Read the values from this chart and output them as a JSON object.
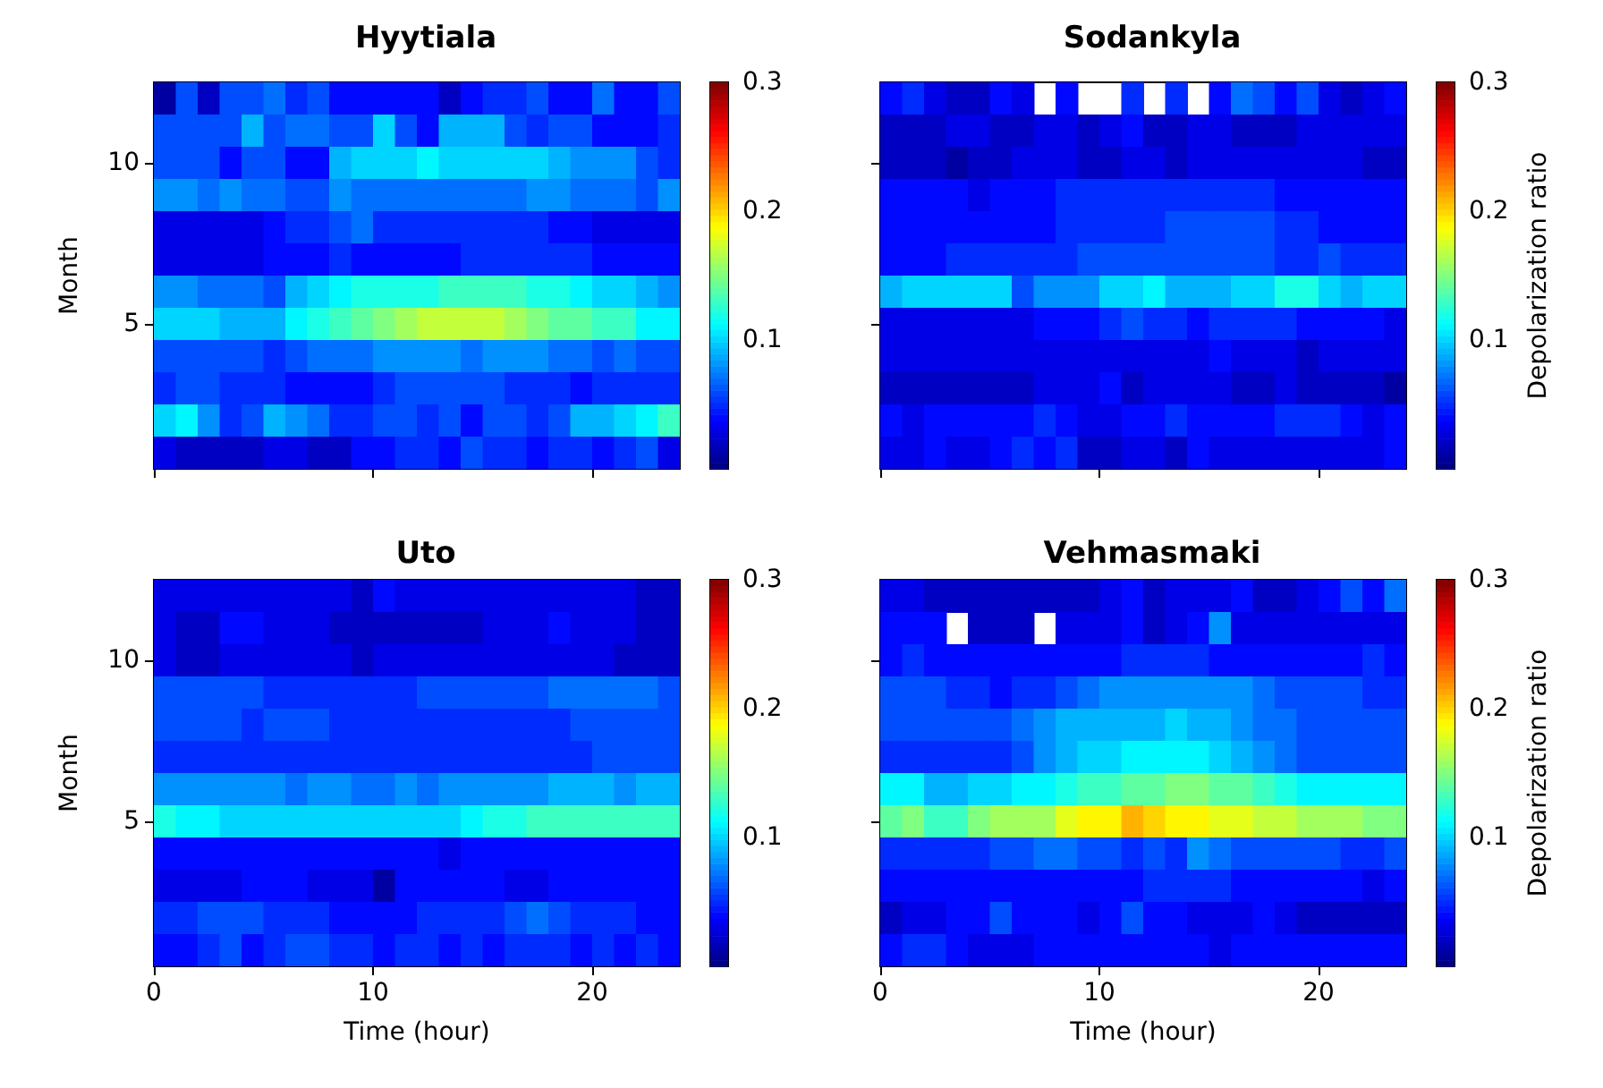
{
  "chart_data": [
    {
      "type": "heatmap",
      "title": "Hyytiala",
      "ylabel": "Month",
      "tick_labels": "y",
      "clim": [
        0,
        0.3
      ],
      "cticks": [
        0.1,
        0.2,
        0.3
      ],
      "xlim": [
        0,
        24
      ],
      "xticks": [
        0,
        10,
        20
      ],
      "x": [
        0.5,
        1.5,
        2.5,
        3.5,
        4.5,
        5.5,
        6.5,
        7.5,
        8.5,
        9.5,
        10.5,
        11.5,
        12.5,
        13.5,
        14.5,
        15.5,
        16.5,
        17.5,
        18.5,
        19.5,
        20.5,
        21.5,
        22.5,
        23.5
      ],
      "y_categories": [
        null,
        null,
        "10",
        null,
        null,
        null,
        null,
        "5",
        null,
        null,
        null,
        null
      ],
      "cells": [
        [
          0.01,
          0.06,
          0.02,
          0.06,
          0.06,
          0.07,
          0.05,
          0.06,
          0.04,
          0.04,
          0.04,
          0.04,
          0.04,
          0.02,
          0.04,
          0.05,
          0.05,
          0.06,
          0.04,
          0.04,
          0.07,
          0.04,
          0.04,
          0.06
        ],
        [
          0.06,
          0.06,
          0.06,
          0.06,
          0.09,
          0.06,
          0.07,
          0.07,
          0.06,
          0.06,
          0.1,
          0.06,
          0.04,
          0.09,
          0.09,
          0.09,
          0.06,
          0.05,
          0.06,
          0.06,
          0.04,
          0.04,
          0.04,
          0.05
        ],
        [
          0.06,
          0.06,
          0.06,
          0.04,
          0.06,
          0.06,
          0.04,
          0.04,
          0.09,
          0.1,
          0.1,
          0.1,
          0.11,
          0.1,
          0.1,
          0.1,
          0.1,
          0.1,
          0.09,
          0.08,
          0.08,
          0.08,
          0.06,
          0.05
        ],
        [
          0.08,
          0.08,
          0.07,
          0.08,
          0.07,
          0.07,
          0.06,
          0.06,
          0.08,
          0.07,
          0.07,
          0.07,
          0.07,
          0.07,
          0.07,
          0.07,
          0.07,
          0.08,
          0.08,
          0.07,
          0.07,
          0.07,
          0.06,
          0.08
        ],
        [
          0.03,
          0.03,
          0.03,
          0.03,
          0.03,
          0.04,
          0.05,
          0.05,
          0.06,
          0.07,
          0.05,
          0.05,
          0.05,
          0.05,
          0.05,
          0.05,
          0.05,
          0.05,
          0.04,
          0.04,
          0.03,
          0.03,
          0.03,
          0.03
        ],
        [
          0.03,
          0.03,
          0.03,
          0.03,
          0.03,
          0.04,
          0.04,
          0.04,
          0.05,
          0.04,
          0.04,
          0.04,
          0.04,
          0.04,
          0.05,
          0.05,
          0.05,
          0.05,
          0.05,
          0.05,
          0.04,
          0.04,
          0.04,
          0.04
        ],
        [
          0.08,
          0.08,
          0.07,
          0.07,
          0.07,
          0.06,
          0.09,
          0.1,
          0.11,
          0.12,
          0.12,
          0.12,
          0.12,
          0.13,
          0.13,
          0.13,
          0.13,
          0.12,
          0.12,
          0.11,
          0.1,
          0.1,
          0.09,
          0.08
        ],
        [
          0.1,
          0.1,
          0.1,
          0.09,
          0.09,
          0.09,
          0.11,
          0.12,
          0.13,
          0.14,
          0.15,
          0.16,
          0.17,
          0.17,
          0.17,
          0.17,
          0.16,
          0.15,
          0.14,
          0.14,
          0.13,
          0.13,
          0.11,
          0.11
        ],
        [
          0.06,
          0.06,
          0.06,
          0.06,
          0.06,
          0.05,
          0.06,
          0.07,
          0.07,
          0.07,
          0.08,
          0.08,
          0.08,
          0.08,
          0.07,
          0.08,
          0.08,
          0.08,
          0.07,
          0.07,
          0.06,
          0.07,
          0.06,
          0.06
        ],
        [
          0.05,
          0.06,
          0.06,
          0.05,
          0.05,
          0.05,
          0.04,
          0.04,
          0.04,
          0.04,
          0.05,
          0.06,
          0.06,
          0.06,
          0.06,
          0.06,
          0.05,
          0.05,
          0.05,
          0.04,
          0.05,
          0.05,
          0.05,
          0.05
        ],
        [
          0.1,
          0.11,
          0.08,
          0.05,
          0.06,
          0.09,
          0.08,
          0.07,
          0.05,
          0.05,
          0.06,
          0.06,
          0.05,
          0.06,
          0.04,
          0.06,
          0.06,
          0.05,
          0.06,
          0.09,
          0.09,
          0.1,
          0.11,
          0.13
        ],
        [
          0.03,
          0.02,
          0.02,
          0.02,
          0.02,
          0.03,
          0.03,
          0.02,
          0.02,
          0.04,
          0.04,
          0.05,
          0.05,
          0.04,
          0.06,
          0.05,
          0.05,
          0.04,
          0.05,
          0.05,
          0.04,
          0.05,
          0.06,
          0.03
        ]
      ]
    },
    {
      "type": "heatmap",
      "title": "Sodankyla",
      "clabel": "Depolarization ratio",
      "tick_labels": false,
      "clim": [
        0,
        0.3
      ],
      "cticks": [
        0.1,
        0.2,
        0.3
      ],
      "xlim": [
        0,
        24
      ],
      "xticks": [
        0,
        10,
        20
      ],
      "x": [
        0.5,
        1.5,
        2.5,
        3.5,
        4.5,
        5.5,
        6.5,
        7.5,
        8.5,
        9.5,
        10.5,
        11.5,
        12.5,
        13.5,
        14.5,
        15.5,
        16.5,
        17.5,
        18.5,
        19.5,
        20.5,
        21.5,
        22.5,
        23.5
      ],
      "y_categories": [
        null,
        null,
        "10",
        null,
        null,
        null,
        null,
        "5",
        null,
        null,
        null,
        null
      ],
      "cells": [
        [
          0.04,
          0.05,
          0.03,
          0.02,
          0.02,
          0.04,
          0.03,
          null,
          0.04,
          null,
          null,
          0.05,
          null,
          0.05,
          null,
          0.04,
          0.07,
          0.06,
          0.04,
          0.06,
          0.03,
          0.02,
          0.03,
          0.04
        ],
        [
          0.02,
          0.02,
          0.02,
          0.03,
          0.03,
          0.02,
          0.02,
          0.03,
          0.03,
          0.02,
          0.03,
          0.04,
          0.02,
          0.02,
          0.03,
          0.03,
          0.02,
          0.02,
          0.02,
          0.03,
          0.03,
          0.03,
          0.03,
          0.03
        ],
        [
          0.02,
          0.02,
          0.02,
          0.01,
          0.02,
          0.02,
          0.03,
          0.03,
          0.03,
          0.02,
          0.02,
          0.03,
          0.03,
          0.02,
          0.03,
          0.03,
          0.03,
          0.03,
          0.03,
          0.03,
          0.03,
          0.03,
          0.02,
          0.02
        ],
        [
          0.04,
          0.04,
          0.04,
          0.04,
          0.03,
          0.04,
          0.04,
          0.04,
          0.05,
          0.05,
          0.05,
          0.05,
          0.05,
          0.05,
          0.05,
          0.05,
          0.05,
          0.05,
          0.04,
          0.04,
          0.04,
          0.04,
          0.04,
          0.04
        ],
        [
          0.04,
          0.04,
          0.04,
          0.04,
          0.04,
          0.04,
          0.04,
          0.04,
          0.05,
          0.05,
          0.05,
          0.05,
          0.05,
          0.06,
          0.06,
          0.06,
          0.06,
          0.06,
          0.05,
          0.05,
          0.04,
          0.04,
          0.04,
          0.04
        ],
        [
          0.04,
          0.04,
          0.04,
          0.05,
          0.05,
          0.05,
          0.05,
          0.05,
          0.05,
          0.06,
          0.06,
          0.06,
          0.06,
          0.06,
          0.06,
          0.06,
          0.06,
          0.06,
          0.05,
          0.05,
          0.06,
          0.05,
          0.05,
          0.05
        ],
        [
          0.09,
          0.1,
          0.1,
          0.1,
          0.1,
          0.1,
          0.06,
          0.08,
          0.08,
          0.08,
          0.1,
          0.1,
          0.11,
          0.09,
          0.09,
          0.09,
          0.1,
          0.1,
          0.12,
          0.12,
          0.1,
          0.09,
          0.1,
          0.1
        ],
        [
          0.03,
          0.03,
          0.03,
          0.03,
          0.03,
          0.03,
          0.03,
          0.04,
          0.04,
          0.04,
          0.05,
          0.06,
          0.05,
          0.05,
          0.04,
          0.05,
          0.05,
          0.05,
          0.05,
          0.04,
          0.04,
          0.04,
          0.04,
          0.03
        ],
        [
          0.03,
          0.03,
          0.03,
          0.03,
          0.03,
          0.03,
          0.03,
          0.03,
          0.03,
          0.03,
          0.03,
          0.03,
          0.03,
          0.03,
          0.03,
          0.04,
          0.03,
          0.03,
          0.03,
          0.02,
          0.03,
          0.03,
          0.03,
          0.03
        ],
        [
          0.02,
          0.02,
          0.02,
          0.02,
          0.02,
          0.02,
          0.02,
          0.03,
          0.03,
          0.03,
          0.04,
          0.02,
          0.03,
          0.03,
          0.03,
          0.03,
          0.02,
          0.02,
          0.03,
          0.02,
          0.02,
          0.02,
          0.02,
          0.01
        ],
        [
          0.04,
          0.03,
          0.04,
          0.04,
          0.04,
          0.04,
          0.04,
          0.05,
          0.04,
          0.03,
          0.03,
          0.04,
          0.04,
          0.05,
          0.04,
          0.04,
          0.04,
          0.04,
          0.05,
          0.05,
          0.05,
          0.04,
          0.03,
          0.04
        ],
        [
          0.03,
          0.03,
          0.04,
          0.03,
          0.03,
          0.04,
          0.05,
          0.04,
          0.05,
          0.02,
          0.02,
          0.03,
          0.03,
          0.02,
          0.04,
          0.03,
          0.03,
          0.03,
          0.03,
          0.03,
          0.03,
          0.03,
          0.03,
          0.04
        ]
      ]
    },
    {
      "type": "heatmap",
      "title": "Uto",
      "xlabel": "Time (hour)",
      "ylabel": "Month",
      "clim": [
        0,
        0.3
      ],
      "cticks": [
        0.1,
        0.2,
        0.3
      ],
      "xlim": [
        0,
        24
      ],
      "xticks": [
        0,
        10,
        20
      ],
      "x": [
        0.5,
        1.5,
        2.5,
        3.5,
        4.5,
        5.5,
        6.5,
        7.5,
        8.5,
        9.5,
        10.5,
        11.5,
        12.5,
        13.5,
        14.5,
        15.5,
        16.5,
        17.5,
        18.5,
        19.5,
        20.5,
        21.5,
        22.5,
        23.5
      ],
      "y_categories": [
        null,
        null,
        "10",
        null,
        null,
        null,
        null,
        "5",
        null,
        null,
        null,
        null
      ],
      "cells": [
        [
          0.03,
          0.03,
          0.03,
          0.03,
          0.03,
          0.03,
          0.03,
          0.03,
          0.03,
          0.02,
          0.04,
          0.03,
          0.03,
          0.03,
          0.03,
          0.03,
          0.03,
          0.03,
          0.03,
          0.03,
          0.03,
          0.03,
          0.02,
          0.02
        ],
        [
          0.03,
          0.02,
          0.02,
          0.04,
          0.04,
          0.03,
          0.03,
          0.03,
          0.02,
          0.02,
          0.02,
          0.02,
          0.02,
          0.02,
          0.02,
          0.03,
          0.03,
          0.03,
          0.04,
          0.03,
          0.03,
          0.03,
          0.02,
          0.02
        ],
        [
          0.03,
          0.02,
          0.02,
          0.03,
          0.03,
          0.03,
          0.03,
          0.03,
          0.03,
          0.02,
          0.03,
          0.03,
          0.03,
          0.03,
          0.03,
          0.03,
          0.03,
          0.03,
          0.03,
          0.03,
          0.03,
          0.02,
          0.02,
          0.02
        ],
        [
          0.06,
          0.06,
          0.06,
          0.06,
          0.06,
          0.05,
          0.05,
          0.05,
          0.05,
          0.05,
          0.05,
          0.05,
          0.06,
          0.06,
          0.06,
          0.06,
          0.06,
          0.06,
          0.07,
          0.07,
          0.07,
          0.07,
          0.07,
          0.06
        ],
        [
          0.06,
          0.06,
          0.06,
          0.06,
          0.05,
          0.06,
          0.06,
          0.06,
          0.05,
          0.05,
          0.05,
          0.05,
          0.05,
          0.05,
          0.05,
          0.05,
          0.05,
          0.05,
          0.05,
          0.06,
          0.06,
          0.06,
          0.06,
          0.06
        ],
        [
          0.05,
          0.05,
          0.05,
          0.05,
          0.05,
          0.05,
          0.05,
          0.05,
          0.05,
          0.05,
          0.05,
          0.05,
          0.05,
          0.05,
          0.05,
          0.05,
          0.05,
          0.05,
          0.05,
          0.05,
          0.06,
          0.06,
          0.06,
          0.06
        ],
        [
          0.08,
          0.08,
          0.08,
          0.08,
          0.08,
          0.08,
          0.07,
          0.08,
          0.08,
          0.07,
          0.07,
          0.08,
          0.07,
          0.08,
          0.08,
          0.08,
          0.08,
          0.08,
          0.09,
          0.09,
          0.09,
          0.08,
          0.09,
          0.09
        ],
        [
          0.12,
          0.11,
          0.11,
          0.1,
          0.1,
          0.1,
          0.1,
          0.1,
          0.1,
          0.1,
          0.1,
          0.1,
          0.1,
          0.1,
          0.11,
          0.12,
          0.12,
          0.13,
          0.13,
          0.13,
          0.13,
          0.13,
          0.13,
          0.13
        ],
        [
          0.04,
          0.04,
          0.04,
          0.04,
          0.04,
          0.04,
          0.04,
          0.04,
          0.04,
          0.04,
          0.04,
          0.04,
          0.04,
          0.03,
          0.04,
          0.04,
          0.04,
          0.04,
          0.04,
          0.04,
          0.04,
          0.04,
          0.04,
          0.04
        ],
        [
          0.03,
          0.03,
          0.03,
          0.03,
          0.04,
          0.04,
          0.04,
          0.03,
          0.03,
          0.03,
          0.01,
          0.04,
          0.04,
          0.04,
          0.04,
          0.04,
          0.03,
          0.03,
          0.04,
          0.04,
          0.04,
          0.04,
          0.04,
          0.04
        ],
        [
          0.05,
          0.05,
          0.06,
          0.06,
          0.06,
          0.05,
          0.05,
          0.05,
          0.04,
          0.04,
          0.04,
          0.04,
          0.05,
          0.05,
          0.05,
          0.05,
          0.06,
          0.07,
          0.06,
          0.05,
          0.05,
          0.05,
          0.04,
          0.04
        ],
        [
          0.04,
          0.04,
          0.05,
          0.06,
          0.04,
          0.05,
          0.06,
          0.06,
          0.05,
          0.05,
          0.04,
          0.05,
          0.05,
          0.04,
          0.05,
          0.04,
          0.05,
          0.05,
          0.05,
          0.04,
          0.05,
          0.04,
          0.05,
          0.04
        ]
      ]
    },
    {
      "type": "heatmap",
      "title": "Vehmasmaki",
      "xlabel": "Time (hour)",
      "clabel": "Depolarization ratio",
      "tick_labels": "x",
      "clim": [
        0,
        0.3
      ],
      "cticks": [
        0.1,
        0.2,
        0.3
      ],
      "xlim": [
        0,
        24
      ],
      "xticks": [
        0,
        10,
        20
      ],
      "x": [
        0.5,
        1.5,
        2.5,
        3.5,
        4.5,
        5.5,
        6.5,
        7.5,
        8.5,
        9.5,
        10.5,
        11.5,
        12.5,
        13.5,
        14.5,
        15.5,
        16.5,
        17.5,
        18.5,
        19.5,
        20.5,
        21.5,
        22.5,
        23.5
      ],
      "y_categories": [
        null,
        null,
        "10",
        null,
        null,
        null,
        null,
        "5",
        null,
        null,
        null,
        null
      ],
      "cells": [
        [
          0.03,
          0.03,
          0.02,
          0.02,
          0.02,
          0.02,
          0.02,
          0.02,
          0.02,
          0.02,
          0.03,
          0.04,
          0.02,
          0.03,
          0.03,
          0.03,
          0.04,
          0.02,
          0.02,
          0.03,
          0.04,
          0.06,
          0.04,
          0.07
        ],
        [
          0.04,
          0.04,
          0.04,
          null,
          0.02,
          0.02,
          0.02,
          null,
          0.03,
          0.03,
          0.03,
          0.04,
          0.02,
          0.03,
          0.04,
          0.08,
          0.03,
          0.03,
          0.03,
          0.03,
          0.03,
          0.03,
          0.03,
          0.03
        ],
        [
          0.04,
          0.05,
          0.04,
          0.04,
          0.04,
          0.04,
          0.04,
          0.04,
          0.04,
          0.04,
          0.04,
          0.05,
          0.05,
          0.05,
          0.05,
          0.04,
          0.04,
          0.04,
          0.04,
          0.04,
          0.04,
          0.04,
          0.05,
          0.04
        ],
        [
          0.06,
          0.06,
          0.06,
          0.05,
          0.05,
          0.04,
          0.05,
          0.05,
          0.06,
          0.07,
          0.08,
          0.08,
          0.08,
          0.08,
          0.08,
          0.08,
          0.08,
          0.07,
          0.06,
          0.06,
          0.06,
          0.06,
          0.05,
          0.05
        ],
        [
          0.06,
          0.06,
          0.06,
          0.06,
          0.06,
          0.06,
          0.07,
          0.08,
          0.09,
          0.09,
          0.09,
          0.09,
          0.09,
          0.1,
          0.09,
          0.09,
          0.08,
          0.07,
          0.07,
          0.06,
          0.06,
          0.06,
          0.06,
          0.06
        ],
        [
          0.05,
          0.05,
          0.05,
          0.05,
          0.05,
          0.05,
          0.06,
          0.08,
          0.09,
          0.1,
          0.1,
          0.11,
          0.11,
          0.11,
          0.11,
          0.1,
          0.09,
          0.08,
          0.07,
          0.06,
          0.06,
          0.06,
          0.06,
          0.06
        ],
        [
          0.11,
          0.11,
          0.09,
          0.09,
          0.1,
          0.1,
          0.11,
          0.11,
          0.12,
          0.13,
          0.13,
          0.14,
          0.14,
          0.15,
          0.15,
          0.14,
          0.14,
          0.13,
          0.12,
          0.11,
          0.11,
          0.11,
          0.11,
          0.11
        ],
        [
          0.14,
          0.15,
          0.13,
          0.13,
          0.15,
          0.16,
          0.16,
          0.16,
          0.18,
          0.19,
          0.19,
          0.21,
          0.2,
          0.19,
          0.19,
          0.18,
          0.18,
          0.17,
          0.17,
          0.16,
          0.16,
          0.16,
          0.15,
          0.15
        ],
        [
          0.05,
          0.05,
          0.05,
          0.05,
          0.05,
          0.06,
          0.06,
          0.07,
          0.07,
          0.06,
          0.06,
          0.05,
          0.06,
          0.05,
          0.08,
          0.07,
          0.06,
          0.06,
          0.06,
          0.06,
          0.06,
          0.05,
          0.05,
          0.06
        ],
        [
          0.04,
          0.04,
          0.04,
          0.04,
          0.04,
          0.04,
          0.04,
          0.04,
          0.04,
          0.04,
          0.04,
          0.04,
          0.05,
          0.05,
          0.05,
          0.05,
          0.04,
          0.04,
          0.04,
          0.04,
          0.04,
          0.04,
          0.03,
          0.04
        ],
        [
          0.02,
          0.03,
          0.03,
          0.04,
          0.04,
          0.06,
          0.04,
          0.04,
          0.04,
          0.03,
          0.04,
          0.06,
          0.04,
          0.04,
          0.03,
          0.03,
          0.03,
          0.04,
          0.03,
          0.02,
          0.02,
          0.02,
          0.02,
          0.02
        ],
        [
          0.04,
          0.05,
          0.05,
          0.04,
          0.03,
          0.03,
          0.03,
          0.04,
          0.04,
          0.04,
          0.04,
          0.04,
          0.04,
          0.04,
          0.04,
          0.03,
          0.04,
          0.04,
          0.04,
          0.04,
          0.04,
          0.04,
          0.04,
          0.04
        ]
      ]
    }
  ]
}
